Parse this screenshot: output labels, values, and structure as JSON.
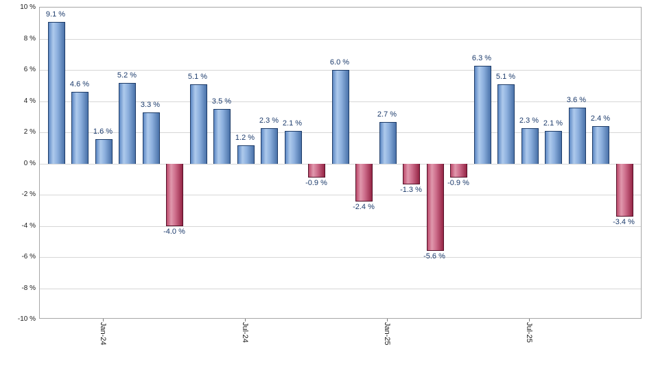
{
  "chart_data": {
    "type": "bar",
    "title": "",
    "values": [
      9.1,
      4.6,
      1.6,
      5.2,
      3.3,
      -4.0,
      5.1,
      3.5,
      1.2,
      2.3,
      2.1,
      -0.9,
      6.0,
      -2.4,
      2.7,
      -1.3,
      -5.6,
      -0.9,
      6.3,
      5.1,
      2.3,
      2.1,
      3.6,
      2.4,
      -3.4
    ],
    "value_labels": [
      "9.1 %",
      "4.6 %",
      "1.6 %",
      "5.2 %",
      "3.3 %",
      "-4.0 %",
      "5.1 %",
      "3.5 %",
      "1.2 %",
      "2.3 %",
      "2.1 %",
      "-0.9 %",
      "6.0 %",
      "-2.4 %",
      "2.7 %",
      "-1.3 %",
      "-5.6 %",
      "-0.9 %",
      "6.3 %",
      "5.1 %",
      "2.3 %",
      "2.1 %",
      "3.6 %",
      "2.4 %",
      "-3.4 %"
    ],
    "y_ticks": [
      {
        "label": "10 %",
        "value": 10
      },
      {
        "label": "8 %",
        "value": 8
      },
      {
        "label": "6 %",
        "value": 6
      },
      {
        "label": "4 %",
        "value": 4
      },
      {
        "label": "2 %",
        "value": 2
      },
      {
        "label": "0 %",
        "value": 0
      },
      {
        "label": "-2 %",
        "value": -2
      },
      {
        "label": "-4 %",
        "value": -4
      },
      {
        "label": "-6 %",
        "value": -6
      },
      {
        "label": "-8 %",
        "value": -8
      },
      {
        "label": "-10 %",
        "value": -10
      }
    ],
    "x_tick_labels": [
      {
        "label": "Jan-24",
        "index": 2
      },
      {
        "label": "Jul-24",
        "index": 8
      },
      {
        "label": "Jan-25",
        "index": 14
      },
      {
        "label": "Jul-25",
        "index": 20
      }
    ],
    "ylim": [
      -10,
      10
    ],
    "xlabel": "",
    "ylabel": "",
    "grid": true,
    "legend": "none",
    "colors": {
      "positive_bar_light": "#aecaec",
      "positive_bar_dark": "#4a72a9",
      "positive_bar_border": "#1c3a66",
      "negative_bar_light": "#e098ad",
      "negative_bar_dark": "#952545",
      "negative_bar_border": "#531028",
      "value_label_text": "#1b3a6b",
      "gridline": "#d6d6d6"
    }
  }
}
